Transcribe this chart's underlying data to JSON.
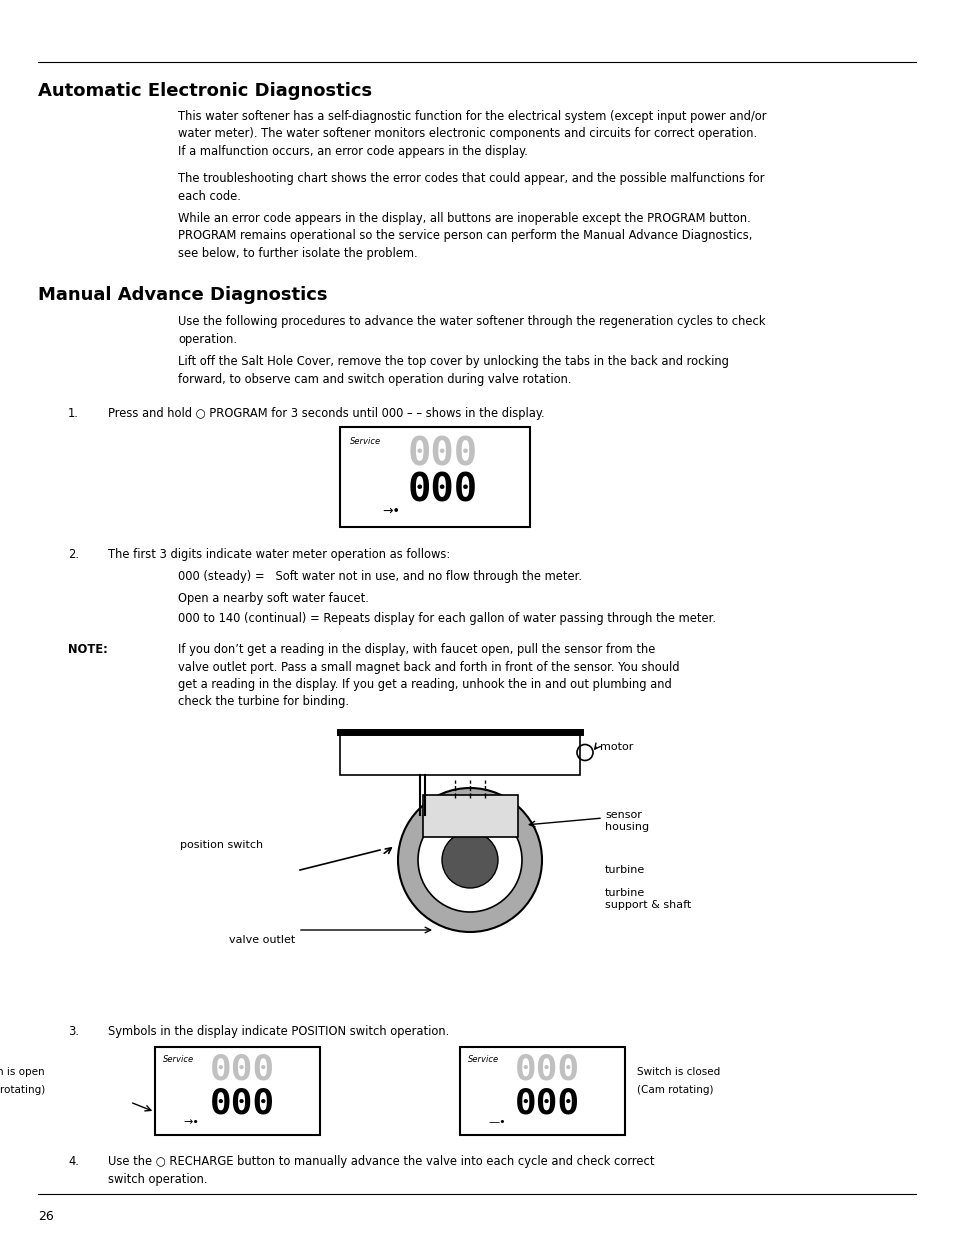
{
  "bg_color": "#ffffff",
  "page_width": 9.54,
  "page_height": 12.39,
  "dpi": 100,
  "page_number": "26",
  "section1_title": "Automatic Electronic Diagnostics",
  "section1_para1": "This water softener has a self-diagnostic function for the electrical system (except input power and/or\nwater meter). The water softener monitors electronic components and circuits for correct operation.\nIf a malfunction occurs, an error code appears in the display.",
  "section1_para2": "The troubleshooting chart shows the error codes that could appear, and the possible malfunctions for\neach code.",
  "section1_para3": "While an error code appears in the display, all buttons are inoperable except the PROGRAM button.\nPROGRAM remains operational so the service person can perform the Manual Advance Diagnostics,\nsee below, to further isolate the problem.",
  "section2_title": "Manual Advance Diagnostics",
  "section2_para1": "Use the following procedures to advance the water softener through the regeneration cycles to check\noperation.",
  "section2_para2": "Lift off the Salt Hole Cover, remove the top cover by unlocking the tabs in the back and rocking\nforward, to observe cam and switch operation during valve rotation.",
  "step1_label": "1.",
  "step1_text": "Press and hold ○ PROGRAM for 3 seconds until 000 – – shows in the display.",
  "step2_label": "2.",
  "step2_text": "The first 3 digits indicate water meter operation as follows:",
  "step2_sub1": "000 (steady) =   Soft water not in use, and no flow through the meter.",
  "step2_sub2": "Open a nearby soft water faucet.",
  "step2_sub3": "000 to 140 (continual) = Repeats display for each gallon of water passing through the meter.",
  "note_label": "NOTE:",
  "note_text": "If you don’t get a reading in the display, with faucet open, pull the sensor from the\nvalve outlet port. Pass a small magnet back and forth in front of the sensor. You should\nget a reading in the display. If you get a reading, unhook the in and out plumbing and\ncheck the turbine for binding.",
  "step3_label": "3.",
  "step3_text": "Symbols in the display indicate POSITION switch operation.",
  "switch_open_line1": "Switch is open",
  "switch_open_line2": "(cam not rotating)",
  "switch_closed_line1": "Switch is closed",
  "switch_closed_line2": "(Cam rotating)",
  "step4_label": "4.",
  "step4_text": "Use the ○ RECHARGE button to manually advance the valve into each cycle and check correct\nswitch operation.",
  "label_motor": "motor",
  "label_sensor": "sensor\nhousing",
  "label_position": "position switch",
  "label_turbine": "turbine",
  "label_turbine2": "turbine\nsupport & shaft",
  "label_valve": "valve outlet"
}
